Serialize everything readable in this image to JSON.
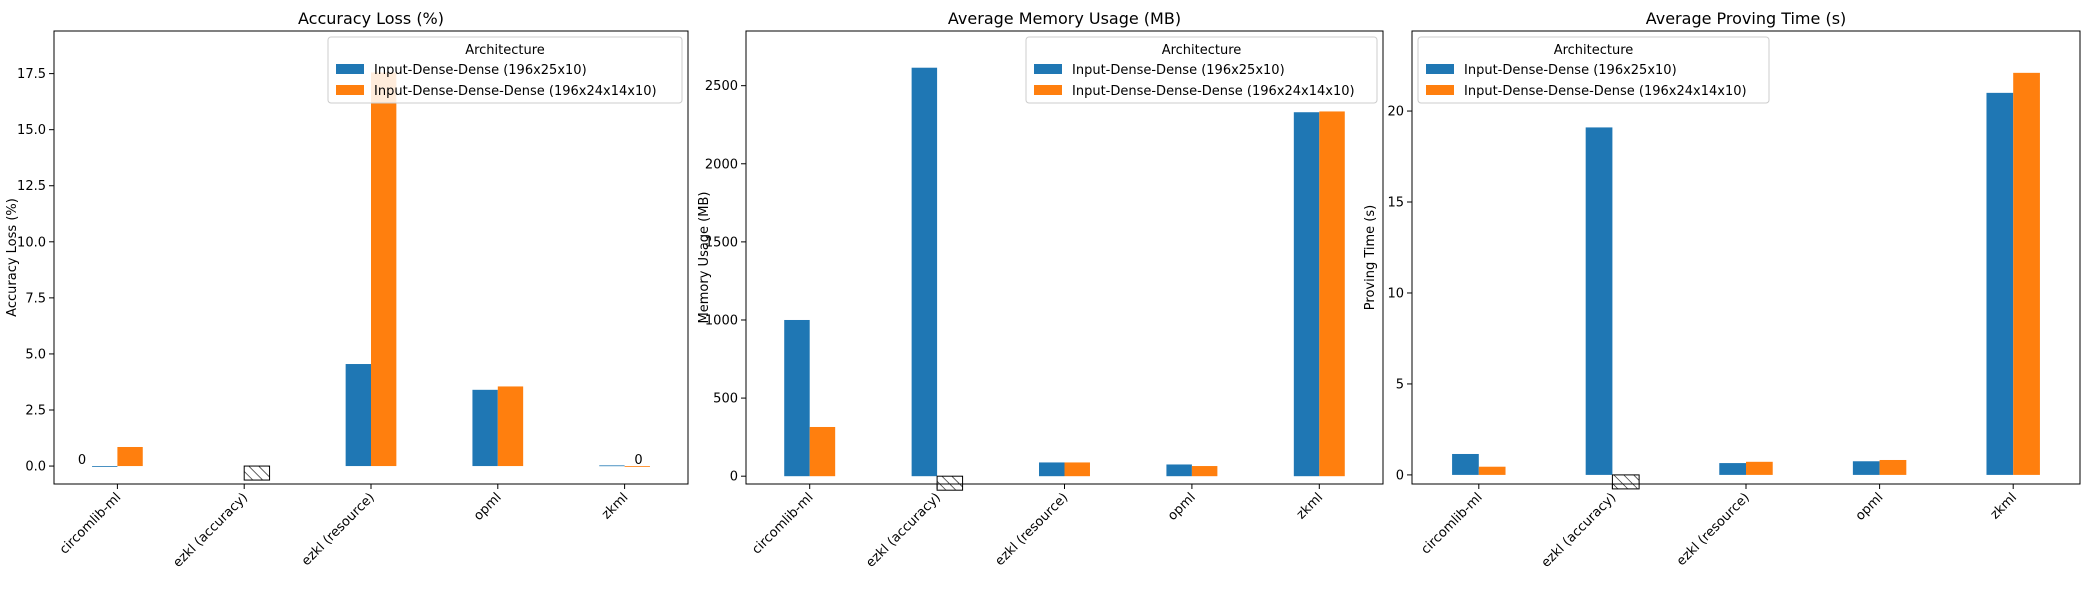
{
  "chart_data": [
    {
      "type": "bar",
      "title": "Accuracy Loss (%)",
      "xlabel": "",
      "ylabel": "Accuracy Loss (%)",
      "ylim": [
        -0.8,
        19.4
      ],
      "yticks": [
        "0.0",
        "2.5",
        "5.0",
        "7.5",
        "10.0",
        "12.5",
        "15.0",
        "17.5"
      ],
      "categories": [
        "circomlib-ml",
        "ezkl (accuracy)",
        "ezkl (resource)",
        "opml",
        "zkml"
      ],
      "legend": {
        "title": "Architecture",
        "placement": "top-right"
      },
      "series": [
        {
          "name": "Input-Dense-Dense (196x25x10)",
          "color": "#1f77b4",
          "values": [
            0,
            null,
            4.55,
            3.4,
            0.03
          ]
        },
        {
          "name": "Input-Dense-Dense-Dense (196x24x14x10)",
          "color": "#ff7f0e",
          "values": [
            0.85,
            null,
            17.55,
            3.55,
            0
          ]
        }
      ],
      "hatched": [
        {
          "category": 1,
          "series": 1,
          "value": 0
        }
      ],
      "annotations": [
        {
          "text": "0",
          "category": 0,
          "series": 0,
          "value": 0
        },
        {
          "text": "0",
          "category": 4,
          "series": 1,
          "value": 0
        }
      ]
    },
    {
      "type": "bar",
      "title": "Average Memory Usage (MB)",
      "xlabel": "",
      "ylabel": "Memory Usage (MB)",
      "ylim": [
        -50,
        2850
      ],
      "yticks": [
        "0",
        "500",
        "1000",
        "1500",
        "2000",
        "2500"
      ],
      "categories": [
        "circomlib-ml",
        "ezkl (accuracy)",
        "ezkl (resource)",
        "opml",
        "zkml"
      ],
      "legend": {
        "title": "Architecture",
        "placement": "top-right"
      },
      "series": [
        {
          "name": "Input-Dense-Dense (196x25x10)",
          "color": "#1f77b4",
          "values": [
            1000,
            2615,
            88,
            75,
            2330
          ]
        },
        {
          "name": "Input-Dense-Dense-Dense (196x24x14x10)",
          "color": "#ff7f0e",
          "values": [
            315,
            null,
            88,
            65,
            2335
          ]
        }
      ],
      "hatched": [
        {
          "category": 1,
          "series": 1,
          "value": 0
        }
      ],
      "annotations": []
    },
    {
      "type": "bar",
      "title": "Average Proving Time (s)",
      "xlabel": "",
      "ylabel": "Proving Time (s)",
      "ylim": [
        -0.5,
        24.4
      ],
      "yticks": [
        "0",
        "5",
        "10",
        "15",
        "20"
      ],
      "categories": [
        "circomlib-ml",
        "ezkl (accuracy)",
        "ezkl (resource)",
        "opml",
        "zkml"
      ],
      "legend": {
        "title": "Architecture",
        "placement": "top-left"
      },
      "series": [
        {
          "name": "Input-Dense-Dense (196x25x10)",
          "color": "#1f77b4",
          "values": [
            1.15,
            19.1,
            0.65,
            0.75,
            21.0
          ]
        },
        {
          "name": "Input-Dense-Dense-Dense (196x24x14x10)",
          "color": "#ff7f0e",
          "values": [
            0.45,
            null,
            0.72,
            0.82,
            22.1
          ]
        }
      ],
      "hatched": [
        {
          "category": 1,
          "series": 1,
          "value": 0
        }
      ],
      "annotations": []
    }
  ]
}
